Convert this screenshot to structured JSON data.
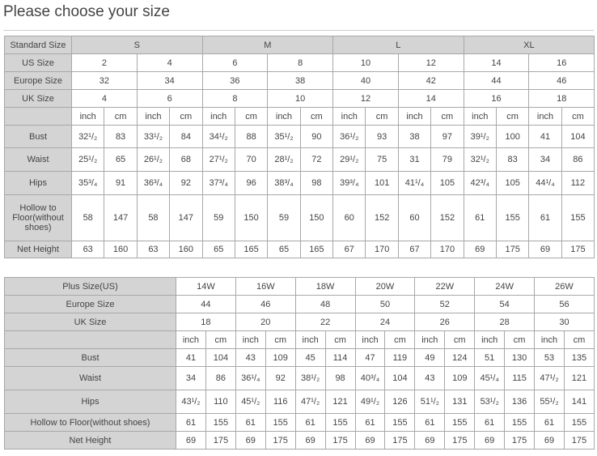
{
  "title": "Please choose your size",
  "standard_table": {
    "header_label": "Standard Size",
    "groups": [
      "S",
      "M",
      "L",
      "XL"
    ],
    "size_rows": [
      {
        "label": "US Size",
        "values": [
          "2",
          "4",
          "6",
          "8",
          "10",
          "12",
          "14",
          "16"
        ]
      },
      {
        "label": "Europe Size",
        "values": [
          "32",
          "34",
          "36",
          "38",
          "40",
          "42",
          "44",
          "46"
        ]
      },
      {
        "label": "UK Size",
        "values": [
          "4",
          "6",
          "8",
          "10",
          "12",
          "14",
          "16",
          "18"
        ]
      }
    ],
    "unit_labels": [
      "inch",
      "cm"
    ],
    "measure_rows": [
      {
        "label": "Bust",
        "values": [
          "32¹/₂",
          "83",
          "33¹/₂",
          "84",
          "34¹/₂",
          "88",
          "35¹/₂",
          "90",
          "36¹/₂",
          "93",
          "38",
          "97",
          "39¹/₂",
          "100",
          "41",
          "104"
        ]
      },
      {
        "label": "Waist",
        "values": [
          "25¹/₂",
          "65",
          "26¹/₂",
          "68",
          "27¹/₂",
          "70",
          "28¹/₂",
          "72",
          "29¹/₂",
          "75",
          "31",
          "79",
          "32¹/₂",
          "83",
          "34",
          "86"
        ]
      },
      {
        "label": "Hips",
        "values": [
          "35³/₄",
          "91",
          "36³/₄",
          "92",
          "37³/₄",
          "96",
          "38³/₄",
          "98",
          "39³/₄",
          "101",
          "41¹/₄",
          "105",
          "42³/₄",
          "105",
          "44¹/₄",
          "112"
        ]
      },
      {
        "label": "Hollow to Floor(without shoes)",
        "values": [
          "58",
          "147",
          "58",
          "147",
          "59",
          "150",
          "59",
          "150",
          "60",
          "152",
          "60",
          "152",
          "61",
          "155",
          "61",
          "155"
        ]
      },
      {
        "label": "Net Height",
        "values": [
          "63",
          "160",
          "63",
          "160",
          "65",
          "165",
          "65",
          "165",
          "67",
          "170",
          "67",
          "170",
          "69",
          "175",
          "69",
          "175"
        ]
      }
    ]
  },
  "plus_table": {
    "size_rows": [
      {
        "label": "Plus Size(US)",
        "values": [
          "14W",
          "16W",
          "18W",
          "20W",
          "22W",
          "24W",
          "26W"
        ]
      },
      {
        "label": "Europe Size",
        "values": [
          "44",
          "46",
          "48",
          "50",
          "52",
          "54",
          "56"
        ]
      },
      {
        "label": "UK Size",
        "values": [
          "18",
          "20",
          "22",
          "24",
          "26",
          "28",
          "30"
        ]
      }
    ],
    "unit_labels": [
      "inch",
      "cm"
    ],
    "measure_rows": [
      {
        "label": "Bust",
        "values": [
          "41",
          "104",
          "43",
          "109",
          "45",
          "114",
          "47",
          "119",
          "49",
          "124",
          "51",
          "130",
          "53",
          "135"
        ]
      },
      {
        "label": "Waist",
        "values": [
          "34",
          "86",
          "36¹/₄",
          "92",
          "38¹/₂",
          "98",
          "40³/₄",
          "104",
          "43",
          "109",
          "45¹/₄",
          "115",
          "47¹/₂",
          "121"
        ]
      },
      {
        "label": "Hips",
        "values": [
          "43¹/₂",
          "110",
          "45¹/₂",
          "116",
          "47¹/₂",
          "121",
          "49¹/₂",
          "126",
          "51¹/₂",
          "131",
          "53¹/₂",
          "136",
          "55¹/₂",
          "141"
        ]
      },
      {
        "label": "Hollow to Floor(without shoes)",
        "values": [
          "61",
          "155",
          "61",
          "155",
          "61",
          "155",
          "61",
          "155",
          "61",
          "155",
          "61",
          "155",
          "61",
          "155"
        ]
      },
      {
        "label": "Net Height",
        "values": [
          "69",
          "175",
          "69",
          "175",
          "69",
          "175",
          "69",
          "175",
          "69",
          "175",
          "69",
          "175",
          "69",
          "175"
        ]
      }
    ]
  }
}
